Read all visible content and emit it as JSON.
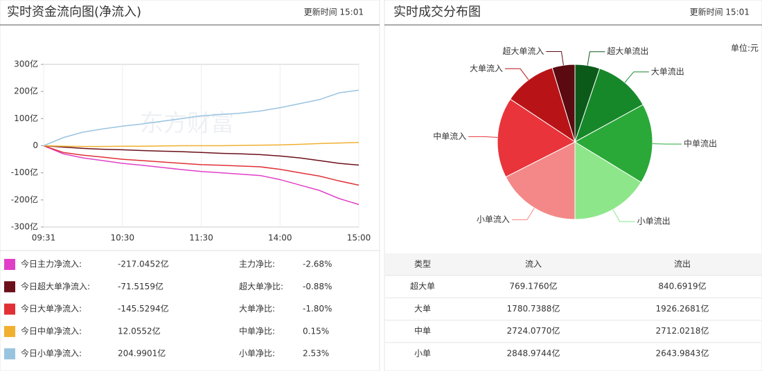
{
  "panels": [
    {
      "title": "实时资金流向图(净流入)",
      "update": "更新时间 15:01",
      "watermark": "东方财富"
    },
    {
      "title": "实时成交分布图",
      "update": "更新时间 15:01",
      "unit": "单位:元"
    }
  ],
  "chart_data": [
    {
      "type": "line",
      "categories": [
        "09:31",
        null,
        null,
        null,
        "10:30",
        null,
        null,
        null,
        "11:30",
        null,
        null,
        null,
        "14:00",
        null,
        null,
        null,
        "15:00"
      ],
      "ylim": [
        -300,
        300
      ],
      "yticks": [
        {
          "value": 300,
          "label": "300亿"
        },
        {
          "value": 200,
          "label": "200亿"
        },
        {
          "value": 100,
          "label": "100亿"
        },
        0,
        {
          "value": -100,
          "label": "-100亿"
        },
        {
          "value": -200,
          "label": "-200亿"
        },
        {
          "value": -300,
          "label": "-300亿"
        }
      ],
      "series": [
        {
          "name": "今日主力净流入:",
          "color": "#e040c8",
          "values": [
            0,
            -30,
            -45,
            -55,
            -65,
            -72,
            -80,
            -88,
            -95,
            -100,
            -105,
            -110,
            -125,
            -145,
            -165,
            -195,
            -217
          ],
          "net": "-217.0452亿",
          "ratio_name": "主力净比:",
          "ratio": "-2.68%"
        },
        {
          "name": "今日超大单净流入:",
          "color": "#6b0f1a",
          "values": [
            0,
            -5,
            -10,
            -13,
            -15,
            -18,
            -20,
            -22,
            -25,
            -28,
            -30,
            -33,
            -38,
            -45,
            -55,
            -65,
            -71.5
          ],
          "net": "-71.5159亿",
          "ratio_name": "超大单净比:",
          "ratio": "-0.88%"
        },
        {
          "name": "今日大单净流入:",
          "color": "#e03036",
          "values": [
            0,
            -25,
            -35,
            -42,
            -50,
            -55,
            -60,
            -65,
            -70,
            -72,
            -75,
            -78,
            -87,
            -100,
            -112,
            -130,
            -145.5
          ],
          "net": "-145.5294亿",
          "ratio_name": "大单净比:",
          "ratio": "-1.80%"
        },
        {
          "name": "今日中单净流入:",
          "color": "#f0b030",
          "values": [
            0,
            -2,
            -3,
            -3,
            -2,
            -2,
            -1,
            0,
            0,
            0,
            1,
            2,
            3,
            5,
            8,
            10,
            12
          ],
          "net": "12.0552亿",
          "ratio_name": "中单净比:",
          "ratio": "0.15%"
        },
        {
          "name": "今日小单净流入:",
          "color": "#99c4e0",
          "values": [
            0,
            30,
            50,
            62,
            72,
            80,
            90,
            100,
            110,
            115,
            120,
            128,
            140,
            155,
            170,
            195,
            205
          ],
          "net": "204.9901亿",
          "ratio_name": "小单净比:",
          "ratio": "2.53%"
        }
      ]
    },
    {
      "type": "pie",
      "categories": [
        "超大单流出",
        "大单流出",
        "中单流出",
        "小单流出",
        "小单流入",
        "中单流入",
        "大单流入",
        "超大单流入"
      ],
      "values": [
        840.6919,
        1926.2681,
        2712.0218,
        2643.9843,
        2848.9744,
        2724.077,
        1780.7388,
        769.176
      ],
      "value_labels": [
        "840.6919亿",
        "1926.2681亿",
        "2712.0218亿",
        "2643.9843亿",
        "2848.9744亿",
        "2724.0770亿",
        "1780.7388亿",
        "769.1760亿"
      ],
      "colors": [
        "#0b5a1a",
        "#17882a",
        "#2aa838",
        "#8ee68a",
        "#f48888",
        "#e8343a",
        "#b81418",
        "#5a0a10"
      ]
    }
  ],
  "table": {
    "header": [
      "类型",
      "流入",
      "流出"
    ],
    "rows": [
      "超大单",
      "大单",
      "中单",
      "小单"
    ]
  }
}
